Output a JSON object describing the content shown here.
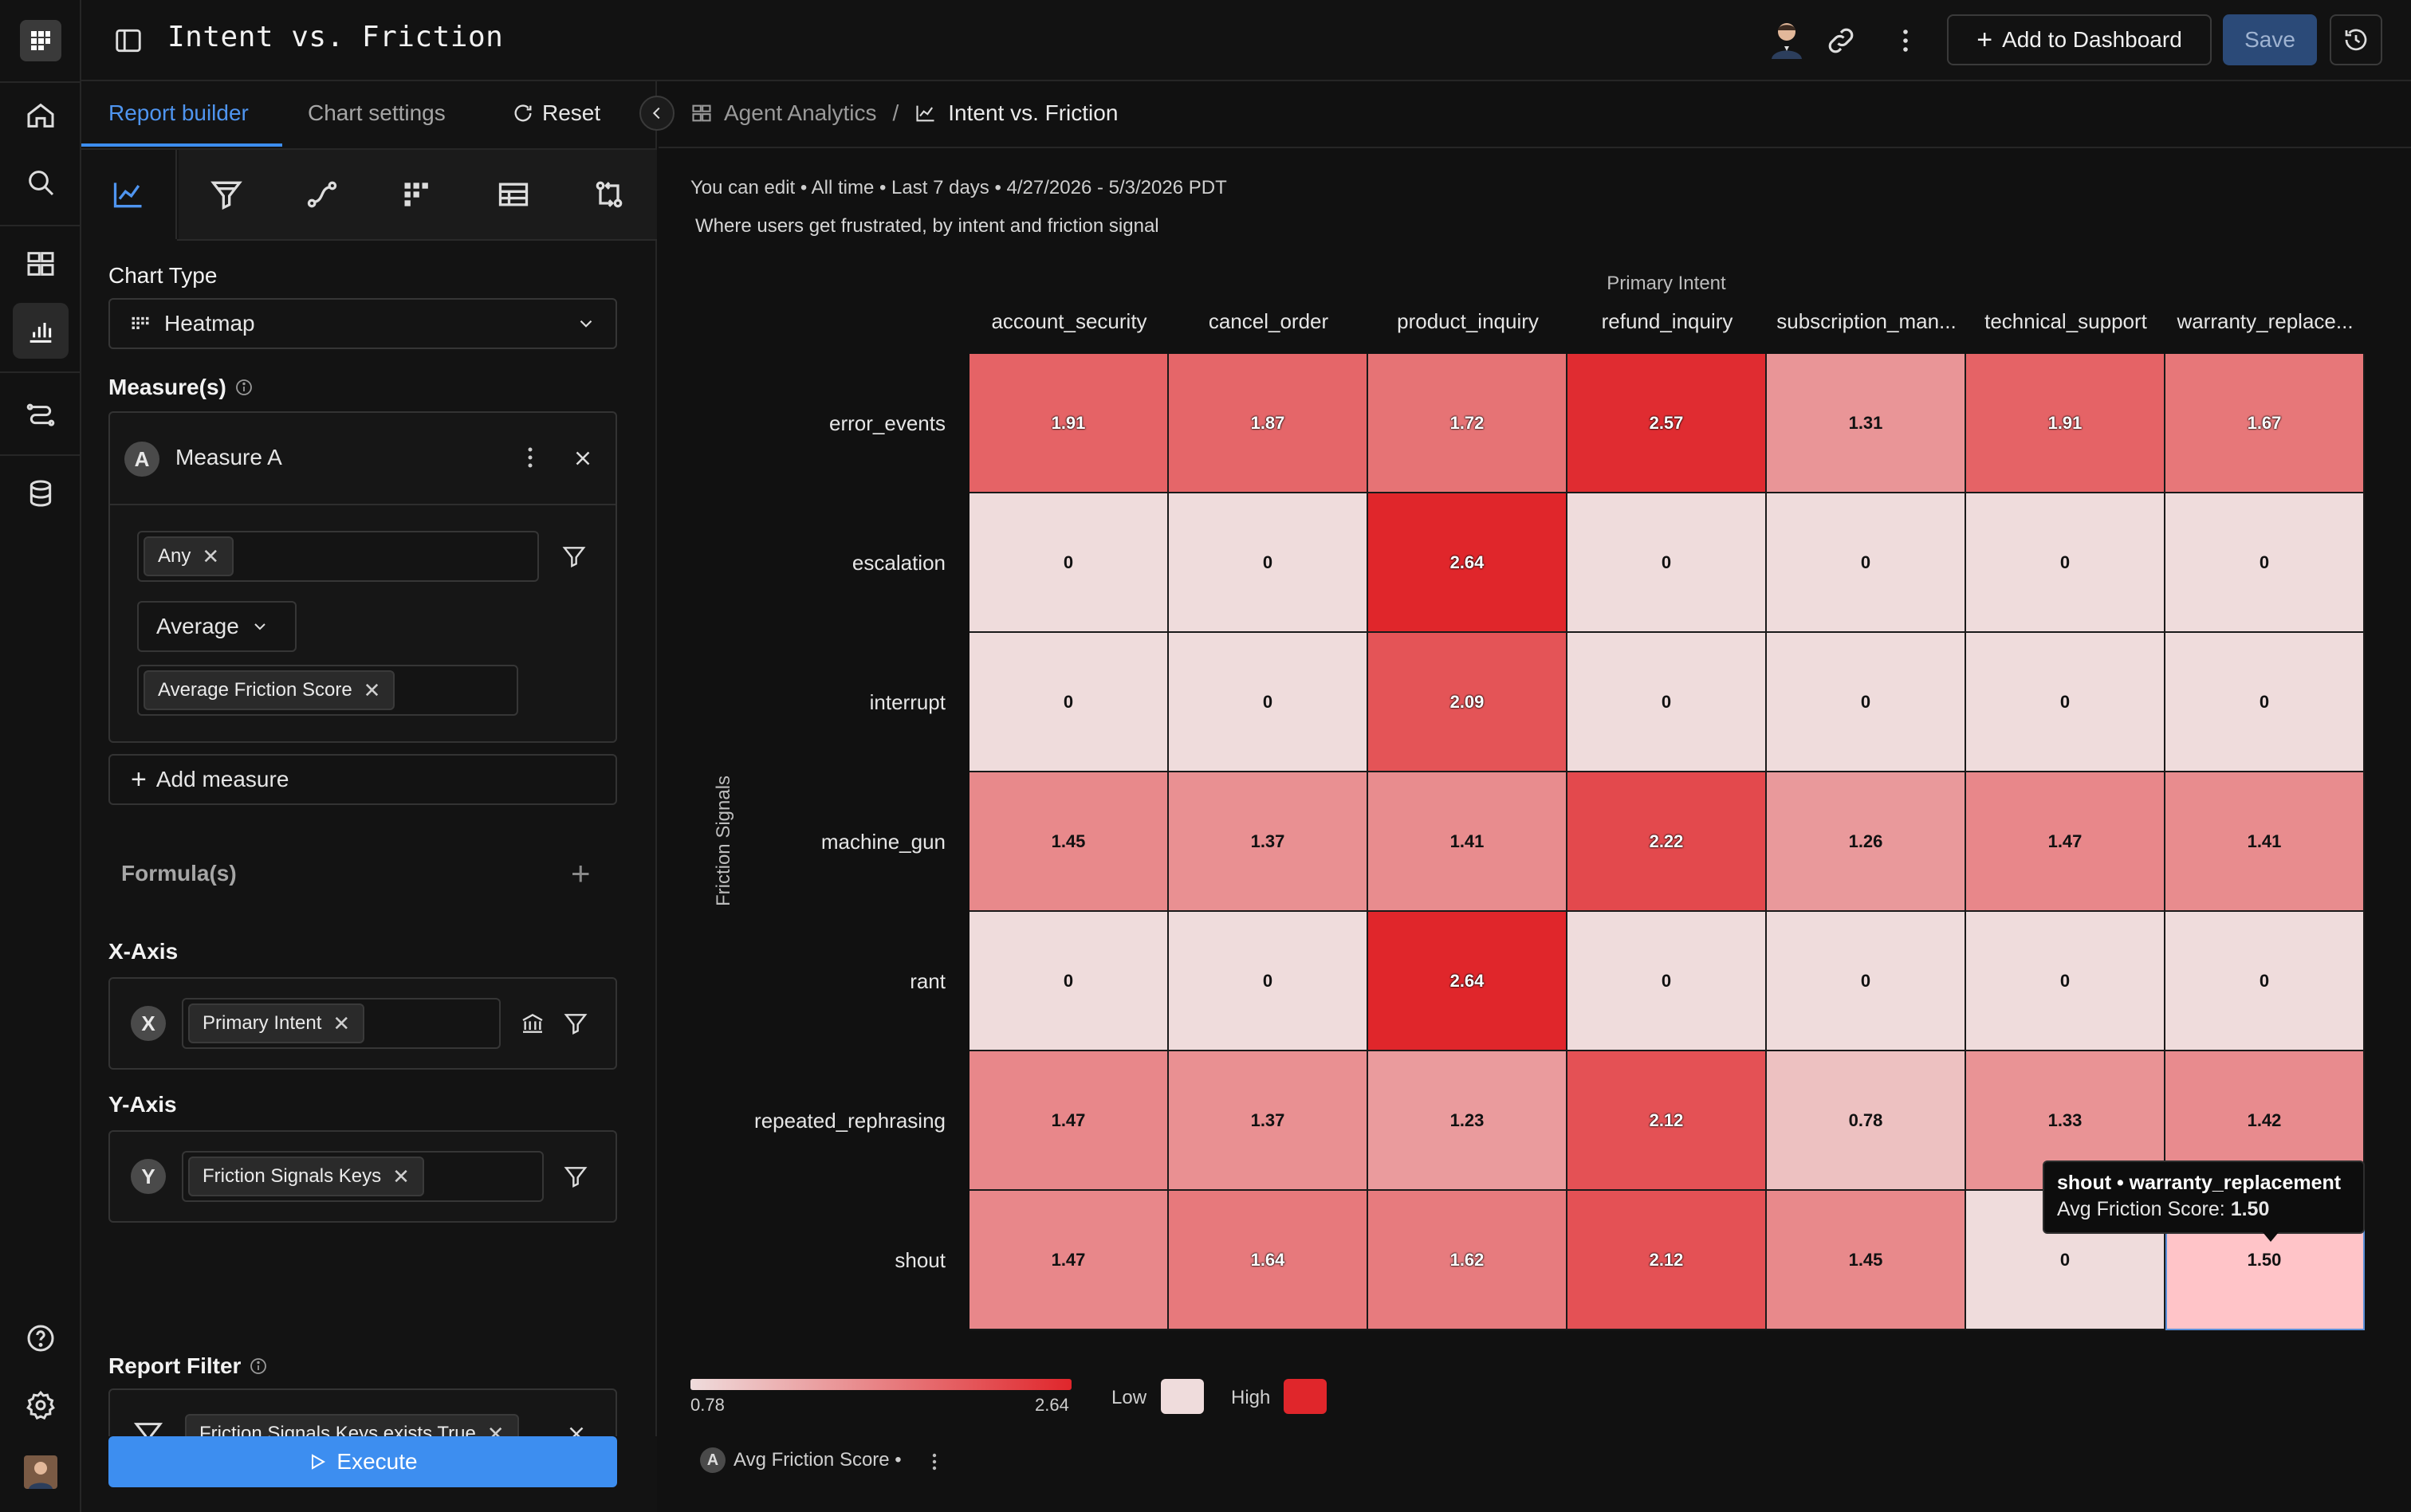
{
  "app": {
    "title": "Intent vs. Friction",
    "add_to_dashboard": "Add to Dashboard",
    "save": "Save"
  },
  "panel": {
    "tabs": [
      "Report builder",
      "Chart settings",
      "Reset"
    ],
    "chart_type_label": "Chart Type",
    "chart_type_value": "Heatmap",
    "measures_label": "Measure(s)",
    "measure_name": "Measure A",
    "measure_letter": "A",
    "filter_chip": "Any",
    "aggregation": "Average",
    "property_chip": "Average Friction Score",
    "add_measure": "Add measure",
    "formulas_label": "Formula(s)",
    "x_axis_label": "X-Axis",
    "x_letter": "X",
    "x_chip": "Primary Intent",
    "y_axis_label": "Y-Axis",
    "y_letter": "Y",
    "y_chip": "Friction Signals Keys",
    "report_filter_label": "Report Filter",
    "report_filter_chip": "Friction Signals Keys exists True",
    "execute": "Execute"
  },
  "breadcrumb": {
    "parent": "Agent Analytics",
    "separator": "/",
    "current": "Intent vs. Friction"
  },
  "report": {
    "meta": "You can edit • All time • Last 7 days • 4/27/2026 - 5/3/2026 PDT",
    "description": "Where users get frustrated, by intent and friction signal"
  },
  "chart_data": {
    "type": "heatmap",
    "x_axis_title": "Primary Intent",
    "y_axis_title": "Friction Signals",
    "columns": [
      "account_security",
      "cancel_order",
      "product_inquiry",
      "refund_inquiry",
      "subscription_man...",
      "technical_support",
      "warranty_replace..."
    ],
    "rows": [
      "error_events",
      "escalation",
      "interrupt",
      "machine_gun",
      "rant",
      "repeated_rephrasing",
      "shout"
    ],
    "values": [
      [
        1.91,
        1.87,
        1.72,
        2.57,
        1.31,
        1.91,
        1.67
      ],
      [
        0,
        0,
        2.64,
        0,
        0,
        0,
        0
      ],
      [
        0,
        0,
        2.09,
        0,
        0,
        0,
        0
      ],
      [
        1.45,
        1.37,
        1.41,
        2.22,
        1.26,
        1.47,
        1.41
      ],
      [
        0,
        0,
        2.64,
        0,
        0,
        0,
        0
      ],
      [
        1.47,
        1.37,
        1.23,
        2.12,
        0.78,
        1.33,
        1.42
      ],
      [
        1.47,
        1.64,
        1.62,
        2.12,
        1.45,
        0,
        1.5
      ]
    ],
    "display": [
      [
        "1.91",
        "1.87",
        "1.72",
        "2.57",
        "1.31",
        "1.91",
        "1.67"
      ],
      [
        "0",
        "0",
        "2.64",
        "0",
        "0",
        "0",
        "0"
      ],
      [
        "0",
        "0",
        "2.09",
        "0",
        "0",
        "0",
        "0"
      ],
      [
        "1.45",
        "1.37",
        "1.41",
        "2.22",
        "1.26",
        "1.47",
        "1.41"
      ],
      [
        "0",
        "0",
        "2.64",
        "0",
        "0",
        "0",
        "0"
      ],
      [
        "1.47",
        "1.37",
        "1.23",
        "2.12",
        "0.78",
        "1.33",
        "1.42"
      ],
      [
        "1.47",
        "1.64",
        "1.62",
        "2.12",
        "1.45",
        "0",
        "1.50"
      ]
    ],
    "scale_min": 0.78,
    "scale_max": 2.64,
    "scale_min_label": "0.78",
    "scale_max_label": "2.64",
    "low_label": "Low",
    "high_label": "High",
    "low_color": "#efdcdc",
    "high_color": "#e0262b",
    "zero_color": "#efdcdc",
    "highlight_color": "#ffc4c8",
    "highlight_row": 6,
    "highlight_col": 6
  },
  "tooltip": {
    "title": "shout • warranty_replacement",
    "metric_label": "Avg Friction Score:",
    "metric_value": "1.50"
  },
  "legend": {
    "letter": "A",
    "label": "Avg Friction Score •"
  }
}
